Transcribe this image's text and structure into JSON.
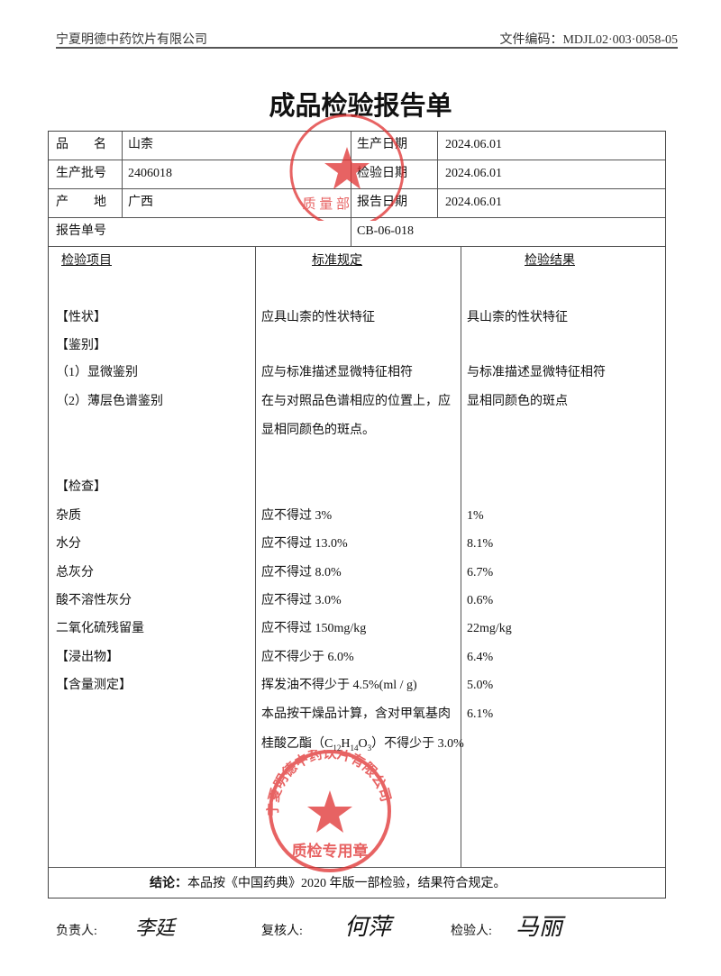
{
  "header": {
    "company": "宁夏明德中药饮片有限公司",
    "doc_code": "文件编码：MDJL02·003·0058-05"
  },
  "title": "成品检验报告单",
  "info": {
    "name_label": "品　　名",
    "name": "山柰",
    "batch_label": "生产批号",
    "batch": "2406018",
    "origin_label": "产　　地",
    "origin": "广西",
    "prod_date_label": "生产日期",
    "prod_date": "2024.06.01",
    "test_date_label": "检验日期",
    "test_date": "2024.06.01",
    "report_date_label": "报告日期",
    "report_date": "2024.06.01",
    "report_no_label": "报告单号",
    "report_no": "CB-06-018"
  },
  "columns": [
    "检验项目",
    "标准规定",
    "检验结果"
  ],
  "rows": [
    [
      "【性状】",
      "应具山柰的性状特征",
      "具山柰的性状特征"
    ],
    [
      "【鉴别】",
      "",
      ""
    ],
    [
      "（1）显微鉴别",
      "应与标准描述显微特征相符",
      "与标准描述显微特征相符"
    ],
    [
      "（2）薄层色谱鉴别",
      "在与对照品色谱相应的位置上，应",
      "显相同颜色的斑点"
    ],
    [
      "",
      "显相同颜色的斑点。",
      ""
    ],
    [
      "【检查】",
      "",
      ""
    ],
    [
      "杂质",
      "应不得过 3%",
      "1%"
    ],
    [
      "水分",
      "应不得过 13.0%",
      "8.1%"
    ],
    [
      "总灰分",
      "应不得过 8.0%",
      "6.7%"
    ],
    [
      "酸不溶性灰分",
      "应不得过 3.0%",
      "0.6%"
    ],
    [
      "二氧化硫残留量",
      "应不得过 150mg/kg",
      "22mg/kg"
    ],
    [
      "【浸出物】",
      "应不得少于 6.0%",
      "6.4%"
    ],
    [
      "【含量测定】",
      "挥发油不得少于 4.5%(ml / g)",
      "5.0%"
    ],
    [
      "",
      "本品按干燥品计算，含对甲氧基肉",
      "6.1%"
    ]
  ],
  "formula_row": {
    "pre": "桂酸乙酯（C",
    "s1": "12",
    "h": "H",
    "s2": "14",
    "o": "O",
    "s3": "3",
    "post": "）不得少于 3.0%"
  },
  "conclusion": {
    "label": "结论：",
    "text": "本品按《中国药典》2020 年版一部检验，结果符合规定。"
  },
  "signatures": {
    "responsible_label": "负责人:",
    "responsible": "李廷",
    "reviewer_label": "复核人:",
    "reviewer": "何萍",
    "inspector_label": "检验人:",
    "inspector": "马丽"
  },
  "stamps": {
    "top": "宁夏明德中药饮片有限公司 质量部",
    "bottom": "宁夏明德中药饮片有限公司 质检专用章"
  },
  "colors": {
    "stamp": "#e03030"
  }
}
